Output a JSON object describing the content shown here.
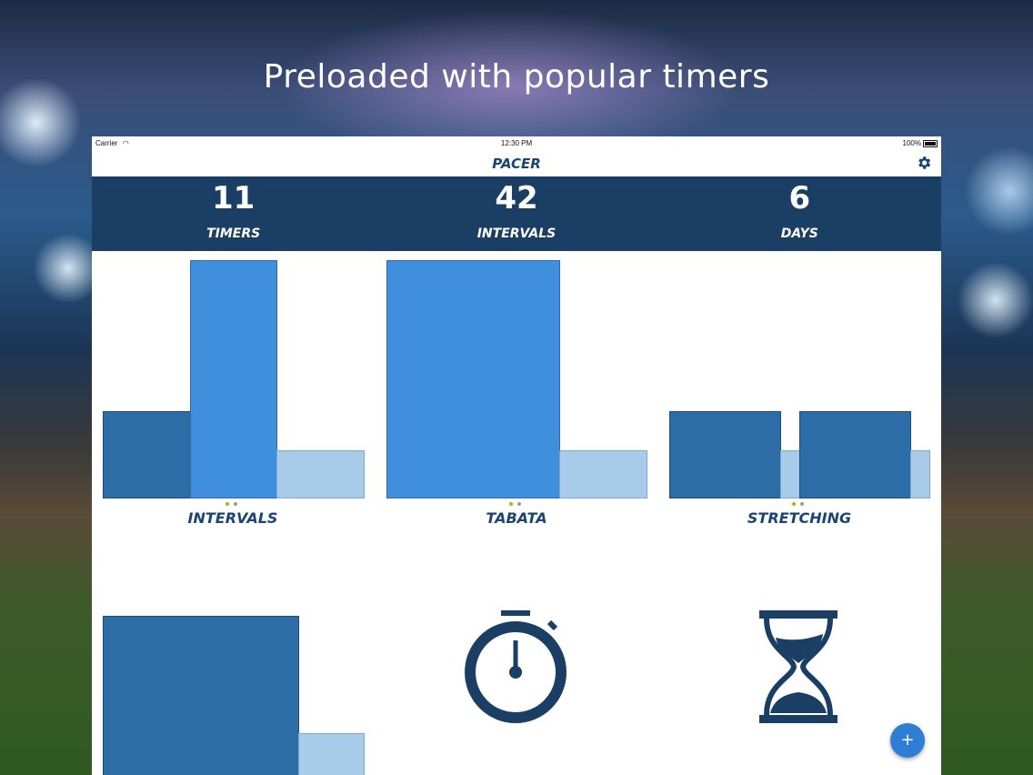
{
  "headline": "Preloaded with popular timers",
  "status_bar": {
    "carrier": "Carrier",
    "time": "12:30 PM",
    "battery": "100%"
  },
  "nav": {
    "title": "PACER",
    "settings_icon": "gear-icon"
  },
  "stats": [
    {
      "value": "11",
      "label": "TIMERS"
    },
    {
      "value": "42",
      "label": "INTERVALS"
    },
    {
      "value": "6",
      "label": "DAYS"
    }
  ],
  "timers": [
    {
      "label": "INTERVALS"
    },
    {
      "label": "TABATA"
    },
    {
      "label": "STRETCHING"
    }
  ],
  "bottom_icons": [
    "stopwatch-icon",
    "hourglass-icon"
  ],
  "fab": {
    "label": "+"
  },
  "colors": {
    "header_bg": "#1b3f64",
    "dark_bar": "#2c6ca7",
    "mid_bar": "#3f8fdd",
    "light_bar": "#a9cbea",
    "dot_active": "#c9a227",
    "dot_inactive": "#9a9a9a",
    "accent": "#2e7fd3"
  }
}
